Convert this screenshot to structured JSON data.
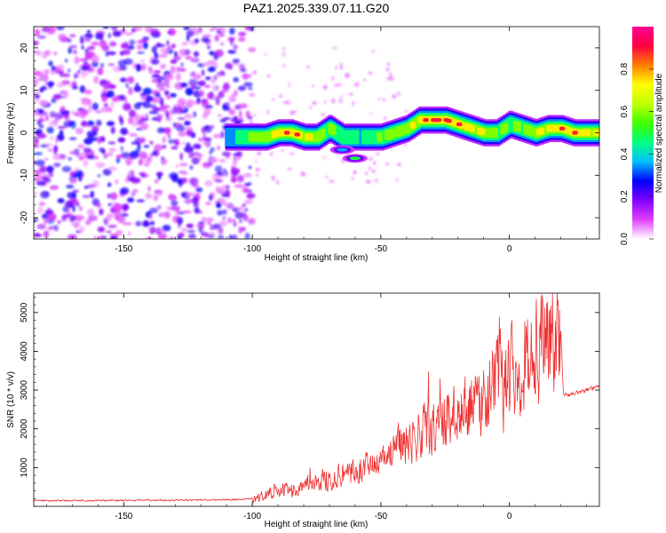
{
  "title": "PAZ1.2025.339.07.11.G20",
  "chart_data": [
    {
      "type": "heatmap",
      "name": "spectrogram",
      "xlabel": "Height of straight line (km)",
      "ylabel": "Frequency (Hz)",
      "xlim": [
        -185,
        35
      ],
      "ylim": [
        -25,
        25
      ],
      "xticks": [
        -150,
        -100,
        -50,
        0
      ],
      "yticks": [
        -20,
        -10,
        0,
        10,
        20
      ],
      "xticklabels": [
        "-150",
        "-100",
        "-50",
        "0"
      ],
      "yticklabels": [
        "-20",
        "-10",
        "0",
        "10",
        "20"
      ],
      "colorbar": {
        "label": "Normalized spectral amplitude",
        "range": [
          0,
          1
        ],
        "ticks": [
          0.0,
          0.2,
          0.4,
          0.6,
          0.8
        ],
        "ticklabels": [
          "0.0",
          "0.2",
          "0.4",
          "0.6",
          "0.8"
        ],
        "colors": [
          "#ffffff",
          "#e040ff",
          "#8000ff",
          "#0000ff",
          "#00c0ff",
          "#00ff80",
          "#40ff00",
          "#c0ff00",
          "#ffff00",
          "#ff8000",
          "#ff0040",
          "#ff0090"
        ]
      },
      "noise_region": {
        "x": [
          -185,
          -100
        ],
        "y": [
          -25,
          25
        ],
        "amplitude": [
          0.05,
          0.25
        ]
      },
      "ridge": {
        "x": [
          -110,
          -100,
          -95,
          -90,
          -85,
          -80,
          -75,
          -70,
          -65,
          -60,
          -55,
          -50,
          -45,
          -40,
          -35,
          -30,
          -25,
          -20,
          -15,
          -10,
          -5,
          0,
          5,
          10,
          15,
          20,
          25,
          30,
          35
        ],
        "freq": [
          -1,
          -1,
          -1,
          0,
          0,
          -1,
          -1,
          1,
          -1,
          -1,
          -1,
          -1,
          0,
          1,
          3,
          3,
          3,
          2,
          1,
          0,
          0,
          2,
          1,
          0,
          1,
          1,
          0,
          0,
          0
        ],
        "amplitude": [
          0.3,
          0.55,
          0.6,
          0.7,
          0.8,
          0.65,
          0.6,
          0.5,
          0.45,
          0.4,
          0.45,
          0.5,
          0.55,
          0.6,
          0.7,
          0.85,
          0.8,
          0.75,
          0.7,
          0.6,
          0.55,
          0.5,
          0.55,
          0.65,
          0.7,
          0.75,
          0.75,
          0.7,
          0.7
        ]
      },
      "secondary_blobs": [
        {
          "x": -60,
          "freq": -6,
          "amplitude": 0.5
        },
        {
          "x": -65,
          "freq": -4,
          "amplitude": 0.35
        }
      ]
    },
    {
      "type": "line",
      "name": "snr",
      "xlabel": "Height of straight line (km)",
      "ylabel": "SNR (10 * v/v)",
      "xlim": [
        -185,
        35
      ],
      "ylim": [
        0,
        5500
      ],
      "xticks": [
        -150,
        -100,
        -50,
        0
      ],
      "yticks": [
        1000,
        2000,
        3000,
        4000,
        5000
      ],
      "xticklabels": [
        "-150",
        "-100",
        "-50",
        "0"
      ],
      "yticklabels": [
        "1000",
        "2000",
        "3000",
        "4000",
        "5000"
      ],
      "color": "#ee3333",
      "x": [
        -185,
        -160,
        -130,
        -110,
        -100,
        -95,
        -90,
        -85,
        -80,
        -75,
        -70,
        -65,
        -60,
        -55,
        -50,
        -45,
        -40,
        -35,
        -30,
        -25,
        -20,
        -15,
        -10,
        -5,
        0,
        5,
        10,
        15,
        20,
        21,
        25,
        30,
        35
      ],
      "y": [
        150,
        150,
        160,
        170,
        200,
        300,
        420,
        450,
        520,
        620,
        760,
        840,
        940,
        1000,
        1080,
        1450,
        1700,
        1850,
        2000,
        2250,
        2400,
        2600,
        2850,
        3250,
        3650,
        3700,
        4000,
        4350,
        4600,
        2850,
        2900,
        3000,
        3100
      ]
    }
  ]
}
